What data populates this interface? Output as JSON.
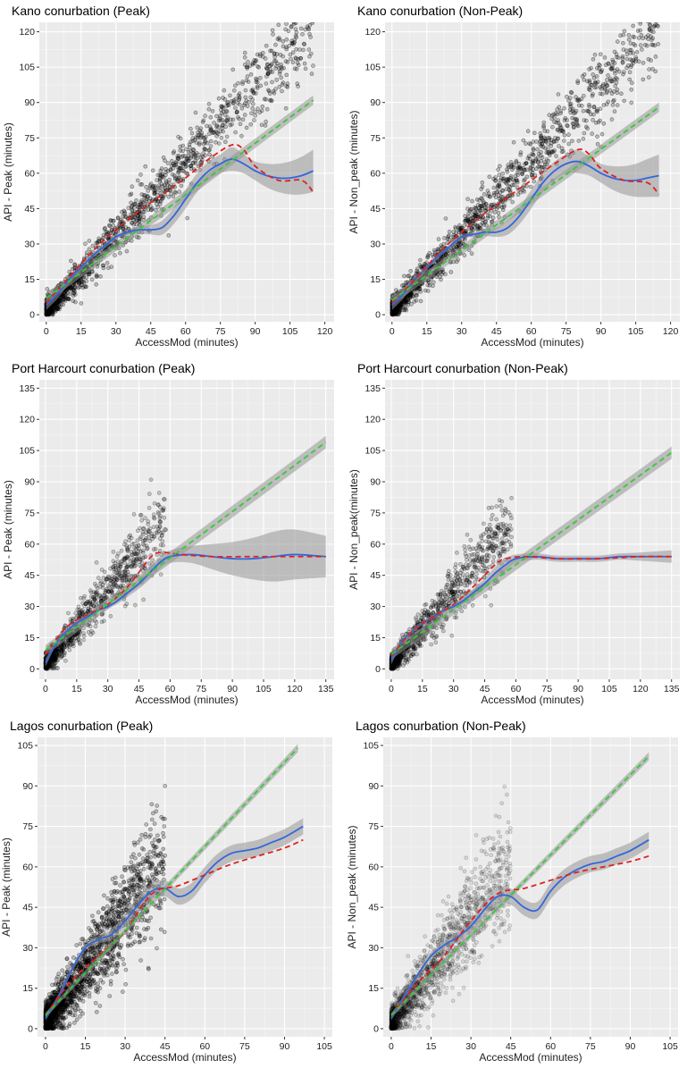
{
  "chart_data": [
    {
      "type": "scatter",
      "title": "Kano conurbation (Peak)",
      "xlabel": "AccessMod (minutes)",
      "ylabel": "API - Peak (minutes)",
      "xlim": [
        -3,
        124
      ],
      "ylim": [
        -3,
        124
      ],
      "xticks": [
        "0",
        "15",
        "30",
        "45",
        "60",
        "75",
        "90",
        "105",
        "120"
      ],
      "yticks": [
        "0",
        "15",
        "30",
        "45",
        "60",
        "75",
        "90",
        "105",
        "120"
      ],
      "grid": true,
      "points": {
        "count": 1400,
        "xmax": 115,
        "density_pct": 30,
        "slope": 1.05,
        "noise": 7
      },
      "series": [
        {
          "style": "smooth",
          "color": "#3366dd",
          "x": [
            0,
            5,
            10,
            15,
            20,
            25,
            30,
            35,
            40,
            45,
            50,
            55,
            60,
            65,
            70,
            75,
            80,
            85,
            90,
            95,
            100,
            105,
            110,
            115
          ],
          "y": [
            4,
            9,
            15,
            20,
            25,
            29,
            33,
            35,
            36,
            36,
            37,
            42,
            49,
            56,
            61,
            64,
            66,
            64,
            61,
            59,
            58,
            58,
            59,
            61
          ],
          "band": [
            2,
            2,
            1.5,
            1,
            1,
            1,
            1,
            1,
            1.5,
            2,
            3,
            3.5,
            4,
            4,
            4,
            4,
            5,
            4,
            4,
            5,
            6,
            7,
            8,
            9
          ]
        },
        {
          "style": "dashed",
          "color": "#dd2222",
          "x": [
            0,
            10,
            20,
            30,
            40,
            50,
            60,
            70,
            80,
            85,
            90,
            100,
            110,
            115
          ],
          "y": [
            5,
            16,
            27,
            36,
            44,
            51,
            58,
            66,
            72,
            70,
            63,
            57,
            57,
            52
          ]
        },
        {
          "style": "dashed",
          "color": "#33cc33",
          "x": [
            0,
            115
          ],
          "y": [
            7,
            91
          ],
          "band": [
            2,
            2
          ]
        }
      ]
    },
    {
      "type": "scatter",
      "title": "Kano conurbation (Non-Peak)",
      "xlabel": "AccessMod (minutes)",
      "ylabel": "API - Non_peak (minutes)",
      "xlim": [
        -3,
        124
      ],
      "ylim": [
        -3,
        124
      ],
      "xticks": [
        "0",
        "15",
        "30",
        "45",
        "60",
        "75",
        "90",
        "105",
        "120"
      ],
      "yticks": [
        "0",
        "15",
        "30",
        "45",
        "60",
        "75",
        "90",
        "105",
        "120"
      ],
      "grid": true,
      "points": {
        "count": 1400,
        "xmax": 115,
        "density_pct": 30,
        "slope": 1.05,
        "noise": 7
      },
      "series": [
        {
          "style": "smooth",
          "color": "#3366dd",
          "x": [
            0,
            5,
            10,
            15,
            20,
            25,
            30,
            35,
            40,
            45,
            50,
            55,
            60,
            65,
            70,
            75,
            80,
            85,
            90,
            95,
            100,
            105,
            110,
            115
          ],
          "y": [
            4,
            9,
            15,
            20,
            25,
            29,
            33,
            34,
            35,
            35,
            37,
            42,
            49,
            56,
            61,
            64,
            65,
            63,
            60,
            58,
            57,
            57,
            58,
            59
          ],
          "band": [
            2,
            2,
            1.5,
            1,
            1,
            1,
            1,
            1,
            1.5,
            2,
            3,
            3.5,
            4,
            4,
            4,
            4,
            5,
            4,
            4,
            5,
            6,
            7,
            8,
            9
          ]
        },
        {
          "style": "dashed",
          "color": "#dd2222",
          "x": [
            0,
            10,
            20,
            30,
            40,
            50,
            60,
            70,
            80,
            85,
            90,
            100,
            110,
            115
          ],
          "y": [
            5,
            15,
            26,
            35,
            43,
            50,
            57,
            64,
            70,
            68,
            62,
            57,
            56,
            51
          ]
        },
        {
          "style": "dashed",
          "color": "#33cc33",
          "x": [
            0,
            115
          ],
          "y": [
            6,
            88
          ],
          "band": [
            2,
            2
          ]
        }
      ]
    },
    {
      "type": "scatter",
      "title": "Port Harcourt conurbation (Peak)",
      "xlabel": "AccessMod (minutes)",
      "ylabel": "API - Peak (minutes)",
      "xlim": [
        -3,
        139
      ],
      "ylim": [
        -5,
        139
      ],
      "xticks": [
        "0",
        "15",
        "30",
        "45",
        "60",
        "75",
        "90",
        "105",
        "120",
        "135"
      ],
      "yticks": [
        "0",
        "15",
        "30",
        "45",
        "60",
        "75",
        "90",
        "105",
        "120",
        "135"
      ],
      "grid": true,
      "points": {
        "count": 1000,
        "xmax": 58,
        "density_pct": 25,
        "slope": 1.2,
        "noise": 7
      },
      "series": [
        {
          "style": "smooth",
          "color": "#3366dd",
          "x": [
            0,
            5,
            10,
            15,
            20,
            25,
            30,
            35,
            40,
            45,
            50,
            55,
            60,
            70,
            80,
            90,
            100,
            110,
            120,
            135
          ],
          "y": [
            3,
            12,
            18,
            22,
            25,
            28,
            30,
            33,
            37,
            41,
            46,
            51,
            54,
            55,
            54,
            53,
            53,
            54,
            55,
            54
          ],
          "band": [
            2,
            1,
            1,
            1,
            1,
            1,
            1,
            1.5,
            2,
            2.5,
            3,
            3,
            3,
            4,
            6,
            8,
            10,
            12,
            12,
            10
          ]
        },
        {
          "style": "dashed",
          "color": "#dd2222",
          "x": [
            0,
            10,
            20,
            30,
            40,
            50,
            55,
            65,
            80,
            100,
            120,
            135
          ],
          "y": [
            7,
            20,
            26,
            31,
            40,
            53,
            56,
            55,
            54,
            54,
            54,
            54
          ]
        },
        {
          "style": "dashed",
          "color": "#33cc33",
          "x": [
            0,
            135
          ],
          "y": [
            9,
            109
          ],
          "band": [
            2.5,
            3
          ]
        }
      ]
    },
    {
      "type": "scatter",
      "title": "Port Harcourt conurbation (Non-Peak)",
      "xlabel": "AccessMod (minutes)",
      "ylabel": "API - Non_peak(minutes)",
      "xlim": [
        -3,
        139
      ],
      "ylim": [
        -5,
        139
      ],
      "xticks": [
        "0",
        "15",
        "30",
        "45",
        "60",
        "75",
        "90",
        "105",
        "120",
        "135"
      ],
      "yticks": [
        "0",
        "15",
        "30",
        "45",
        "60",
        "75",
        "90",
        "105",
        "120",
        "135"
      ],
      "grid": true,
      "points": {
        "count": 1000,
        "xmax": 58,
        "density_pct": 25,
        "slope": 1.15,
        "noise": 7
      },
      "series": [
        {
          "style": "smooth",
          "color": "#3366dd",
          "x": [
            0,
            5,
            10,
            15,
            20,
            25,
            30,
            35,
            40,
            45,
            50,
            55,
            60,
            70,
            80,
            90,
            100,
            110,
            120,
            135
          ],
          "y": [
            4,
            13,
            18,
            22,
            25,
            28,
            30,
            33,
            37,
            41,
            46,
            50,
            53,
            54,
            53,
            53,
            53,
            54,
            54,
            54
          ],
          "band": [
            2,
            1,
            1,
            1,
            1,
            1,
            1,
            1.5,
            2,
            2.5,
            3,
            3,
            2,
            1.5,
            1.5,
            1.5,
            1.5,
            1.5,
            2,
            3
          ]
        },
        {
          "style": "dashed",
          "color": "#dd2222",
          "x": [
            0,
            10,
            20,
            30,
            40,
            50,
            55,
            65,
            80,
            100,
            120,
            135
          ],
          "y": [
            6,
            18,
            25,
            31,
            40,
            50,
            53,
            54,
            53,
            53,
            54,
            54
          ]
        },
        {
          "style": "dashed",
          "color": "#33cc33",
          "x": [
            0,
            135
          ],
          "y": [
            7,
            104
          ],
          "band": [
            2.5,
            3
          ]
        }
      ]
    },
    {
      "type": "scatter",
      "title": "Lagos conurbation (Peak)",
      "xlabel": "AccessMod (minutes)",
      "ylabel": "API - Peak (minutes)",
      "xlim": [
        -3,
        108
      ],
      "ylim": [
        -3,
        108
      ],
      "xticks": [
        "0",
        "15",
        "30",
        "45",
        "60",
        "75",
        "90",
        "105"
      ],
      "yticks": [
        "0",
        "15",
        "30",
        "45",
        "60",
        "75",
        "90",
        "105"
      ],
      "grid": true,
      "points": {
        "count": 1800,
        "xmax": 45,
        "density_pct": 30,
        "slope": 1.35,
        "noise": 9
      },
      "series": [
        {
          "style": "smooth",
          "color": "#3366dd",
          "x": [
            0,
            5,
            10,
            15,
            20,
            25,
            30,
            35,
            40,
            45,
            50,
            55,
            60,
            65,
            70,
            75,
            80,
            85,
            90,
            97
          ],
          "y": [
            4,
            12,
            22,
            30,
            33,
            35,
            40,
            46,
            51,
            52,
            49,
            51,
            57,
            62,
            65,
            66,
            67,
            69,
            71,
            75
          ],
          "band": [
            1,
            1,
            1,
            1,
            1.5,
            2,
            2.5,
            3,
            3,
            3,
            3,
            3,
            3,
            3,
            3,
            3,
            3,
            3,
            3,
            3
          ]
        },
        {
          "style": "dashed",
          "color": "#dd2222",
          "x": [
            0,
            10,
            20,
            30,
            40,
            50,
            60,
            70,
            80,
            90,
            97
          ],
          "y": [
            5,
            18,
            27,
            36,
            50,
            53,
            57,
            61,
            64,
            67,
            70
          ]
        },
        {
          "style": "dashed",
          "color": "#33cc33",
          "x": [
            0,
            95
          ],
          "y": [
            5,
            104
          ],
          "band": [
            1,
            1.5
          ]
        }
      ]
    },
    {
      "type": "scatter",
      "title": "Lagos conurbation (Non-Peak)",
      "xlabel": "AccessMod (minutes)",
      "ylabel": "API - Non_peak (minutes)",
      "xlim": [
        -3,
        108
      ],
      "ylim": [
        -3,
        108
      ],
      "xticks": [
        "0",
        "15",
        "30",
        "45",
        "60",
        "75",
        "90",
        "105"
      ],
      "yticks": [
        "0",
        "15",
        "30",
        "45",
        "60",
        "75",
        "90",
        "105"
      ],
      "grid": true,
      "points": {
        "count": 1500,
        "xmax": 45,
        "density_pct": 15,
        "slope": 1.3,
        "noise": 9
      },
      "series": [
        {
          "style": "smooth",
          "color": "#3366dd",
          "x": [
            0,
            5,
            10,
            15,
            20,
            25,
            30,
            35,
            40,
            45,
            50,
            55,
            60,
            65,
            70,
            75,
            80,
            85,
            90,
            97
          ],
          "y": [
            4,
            12,
            20,
            27,
            31,
            34,
            38,
            44,
            49,
            49,
            45,
            44,
            51,
            56,
            59,
            61,
            62,
            64,
            66,
            70
          ],
          "band": [
            1,
            1,
            1,
            1,
            1.5,
            2,
            2.5,
            3,
            3,
            3,
            3,
            3,
            3,
            3,
            3,
            3,
            3,
            3,
            3,
            3
          ]
        },
        {
          "style": "dashed",
          "color": "#dd2222",
          "x": [
            0,
            10,
            20,
            30,
            40,
            50,
            60,
            70,
            80,
            90,
            97
          ],
          "y": [
            5,
            17,
            27,
            40,
            50,
            52,
            55,
            58,
            60,
            62,
            64
          ]
        },
        {
          "style": "dashed",
          "color": "#33cc33",
          "x": [
            0,
            97
          ],
          "y": [
            5,
            101
          ],
          "band": [
            1,
            1.5
          ]
        }
      ]
    }
  ]
}
